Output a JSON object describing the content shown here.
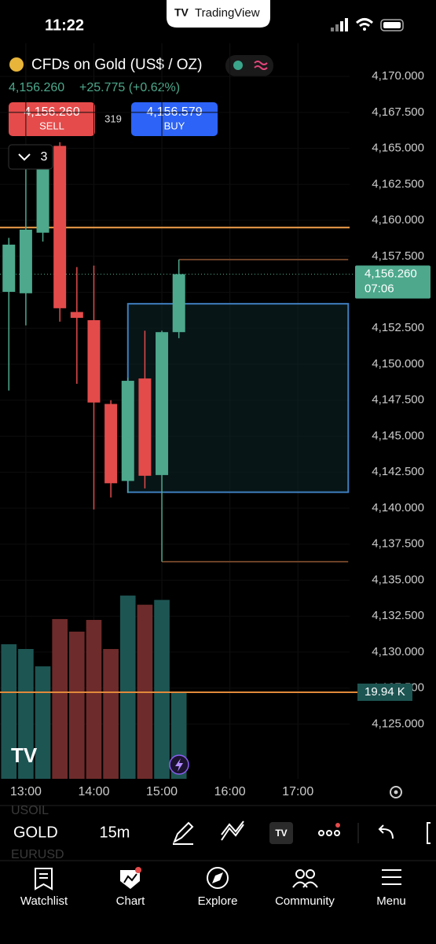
{
  "status_bar": {
    "time": "11:22",
    "app": "TradingView"
  },
  "header": {
    "symbol_title": "CFDs on Gold (US$ / OZ)",
    "price": "4,156.260",
    "change": "+25.775 (+0.62%)"
  },
  "trade": {
    "sell_price": "4,156.260",
    "sell_label": "SELL",
    "spread": "319",
    "buy_price": "4,156.579",
    "buy_label": "BUY",
    "indicator_count": "3"
  },
  "chart_data": {
    "type": "candlestick",
    "x": [
      12.75,
      13,
      13.25,
      13.5,
      13.75,
      14,
      14.25,
      14.5,
      14.75,
      15,
      15.25
    ],
    "open": [
      4155.03,
      4154.93,
      4159.14,
      4165.17,
      4153.63,
      4153.06,
      4147.24,
      4141.89,
      4149.01,
      4142.3,
      4152.23
    ],
    "high": [
      4158.78,
      4164.13,
      4165.17,
      4165.43,
      4156.75,
      4156.85,
      4147.5,
      4149.06,
      4152.33,
      4152.33,
      4157.27
    ],
    "low": [
      4148.17,
      4152.7,
      4158.52,
      4152.96,
      4148.64,
      4139.91,
      4140.74,
      4141.06,
      4141.37,
      4136.28,
      4151.81
    ],
    "close": [
      4158.31,
      4159.35,
      4164.39,
      4153.89,
      4153.22,
      4147.34,
      4141.73,
      4148.85,
      4142.25,
      4152.23,
      4156.26
    ],
    "up_color": "#4da88c",
    "down_color": "#e34b4b",
    "xlim": [
      12.62,
      17.76
    ],
    "xticks": [
      {
        "value": 13,
        "label": "13:00"
      },
      {
        "value": 14,
        "label": "14:00"
      },
      {
        "value": 15,
        "label": "15:00"
      },
      {
        "value": 16,
        "label": "16:00"
      },
      {
        "value": 17,
        "label": "17:00"
      }
    ],
    "ylim": [
      4120.65,
      4172.3
    ],
    "yticks": [
      {
        "value": 4170,
        "label": "4,170.000"
      },
      {
        "value": 4167.5,
        "label": "4,167.500"
      },
      {
        "value": 4165,
        "label": "4,165.000"
      },
      {
        "value": 4162.5,
        "label": "4,162.500"
      },
      {
        "value": 4160,
        "label": "4,160.000"
      },
      {
        "value": 4157.5,
        "label": "4,157.500"
      },
      {
        "value": 4155,
        "label": "4,155.000"
      },
      {
        "value": 4152.5,
        "label": "4,152.500"
      },
      {
        "value": 4150,
        "label": "4,150.000"
      },
      {
        "value": 4147.5,
        "label": "4,147.500"
      },
      {
        "value": 4145,
        "label": "4,145.000"
      },
      {
        "value": 4142.5,
        "label": "4,142.500"
      },
      {
        "value": 4140,
        "label": "4,140.000"
      },
      {
        "value": 4137.5,
        "label": "4,137.500"
      },
      {
        "value": 4135,
        "label": "4,135.000"
      },
      {
        "value": 4132.5,
        "label": "4,132.500"
      },
      {
        "value": 4130,
        "label": "4,130.000"
      },
      {
        "value": 4127.5,
        "label": "4,127.500"
      },
      {
        "value": 4125,
        "label": "4,125.000"
      }
    ],
    "grid": true,
    "last_price": 4156.26,
    "last_price_label": "4,156.260",
    "countdown": "07:06",
    "levels": [
      {
        "value": 4159.5,
        "from": 12.62,
        "color": "#f2a04a"
      },
      {
        "value": 4157.27,
        "from": 15.25,
        "color": "#6b4127"
      },
      {
        "value": 4136.28,
        "from": 15,
        "color": "#6b4127"
      }
    ],
    "box": {
      "x": [
        14.5,
        17.74
      ],
      "y": [
        4141.11,
        4154.2
      ],
      "color": "#3f7fbf"
    },
    "volume": {
      "values": [
        31.0,
        29.9,
        25.9,
        36.8,
        33.9,
        36.6,
        29.9,
        42.2,
        40.1,
        41.2,
        19.94
      ],
      "vlim": [
        0,
        45.3
      ],
      "last_label": "19.94 K",
      "line_color": "#e0893a",
      "up_color": "#1d5553",
      "down_color": "#6e2b2b"
    }
  },
  "toolbar": {
    "symbol": "GOLD",
    "interval": "15m",
    "prev_symbol": "USOIL",
    "next_symbol": "EURUSD"
  },
  "nav": [
    "Watchlist",
    "Chart",
    "Explore",
    "Community",
    "Menu"
  ]
}
